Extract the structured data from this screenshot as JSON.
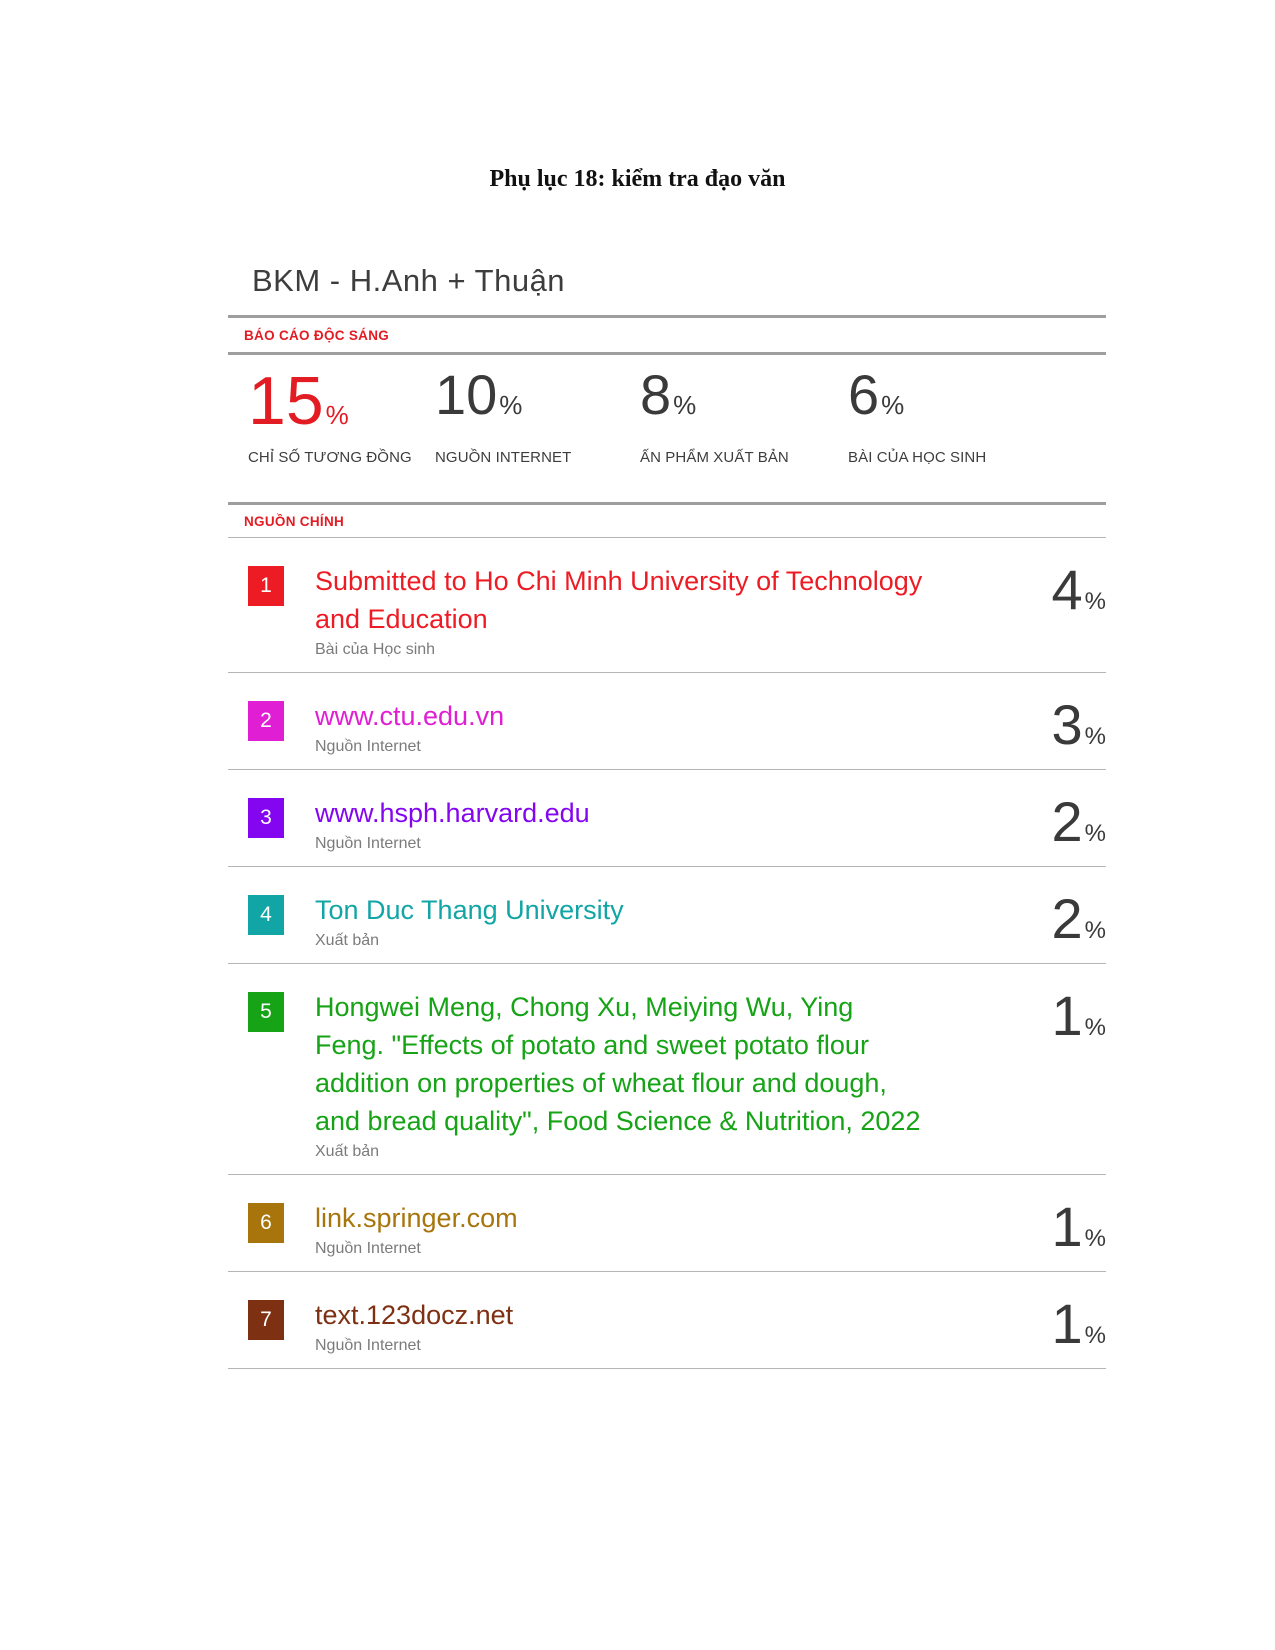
{
  "page": {
    "title": "Phụ lục 18: kiểm tra đạo văn"
  },
  "report": {
    "title": "BKM - H.Anh + Thuận",
    "accent_color": "#e31b23",
    "percent_sign": "%",
    "section_report_label": "BÁO CÁO ĐỘC SÁNG",
    "section_sources_label": "NGUỒN CHÍNH",
    "stats": [
      {
        "value": "15",
        "label": "CHỈ SỐ TƯƠNG ĐỒNG",
        "color": "#e31b23"
      },
      {
        "value": "10",
        "label": "NGUỒN INTERNET",
        "color": "#3a3a3a"
      },
      {
        "value": "8",
        "label": "ẤN PHẨM XUẤT BẢN",
        "color": "#3a3a3a"
      },
      {
        "value": "6",
        "label": "BÀI CỦA HỌC SINH",
        "color": "#3a3a3a"
      }
    ],
    "sources": [
      {
        "rank": "1",
        "title": "Submitted to Ho Chi Minh University of Technology and Education",
        "type": "Bài của Học sinh",
        "percent": "4",
        "color": "#ed1c24"
      },
      {
        "rank": "2",
        "title": "www.ctu.edu.vn",
        "type": "Nguồn Internet",
        "percent": "3",
        "color": "#e01fd5"
      },
      {
        "rank": "3",
        "title": "www.hsph.harvard.edu",
        "type": "Nguồn Internet",
        "percent": "2",
        "color": "#8405f0"
      },
      {
        "rank": "4",
        "title": "Ton Duc Thang University",
        "type": "Xuất bản",
        "percent": "2",
        "color": "#12a5a5"
      },
      {
        "rank": "5",
        "title": "Hongwei Meng, Chong Xu, Meiying Wu, Ying Feng. \"Effects of potato and sweet potato flour addition on properties of wheat flour and dough, and bread quality\", Food Science & Nutrition, 2022",
        "type": "Xuất bản",
        "percent": "1",
        "color": "#16a316"
      },
      {
        "rank": "6",
        "title": "link.springer.com",
        "type": "Nguồn Internet",
        "percent": "1",
        "color": "#a8750c"
      },
      {
        "rank": "7",
        "title": "text.123docz.net",
        "type": "Nguồn Internet",
        "percent": "1",
        "color": "#7e3012"
      }
    ]
  }
}
